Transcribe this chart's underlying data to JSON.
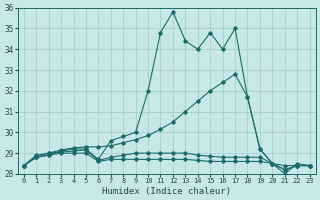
{
  "xlabel": "Humidex (Indice chaleur)",
  "bg_color": "#c8e8e8",
  "grid_color": "#a8cece",
  "line_color": "#1a6b6b",
  "xlim": [
    -0.5,
    23.5
  ],
  "ylim": [
    28,
    36
  ],
  "yticks": [
    28,
    29,
    30,
    31,
    32,
    33,
    34,
    35,
    36
  ],
  "xticks": [
    0,
    1,
    2,
    3,
    4,
    5,
    6,
    7,
    8,
    9,
    10,
    11,
    12,
    13,
    14,
    15,
    16,
    17,
    18,
    19,
    20,
    21,
    22,
    23
  ],
  "series": [
    [
      28.4,
      28.8,
      28.9,
      29.1,
      29.2,
      29.2,
      28.7,
      29.6,
      29.8,
      30.0,
      32.0,
      34.8,
      35.8,
      34.4,
      34.0,
      34.8,
      34.0,
      35.0,
      31.7,
      29.2,
      28.5,
      28.0,
      28.5,
      28.4
    ],
    [
      28.4,
      28.8,
      29.0,
      29.15,
      29.25,
      29.3,
      29.3,
      29.35,
      29.5,
      29.65,
      29.85,
      30.15,
      30.5,
      31.0,
      31.5,
      32.0,
      32.4,
      32.8,
      31.7,
      29.2,
      28.5,
      28.4,
      28.4,
      28.4
    ],
    [
      28.4,
      28.9,
      29.0,
      29.05,
      29.1,
      29.15,
      28.65,
      28.8,
      28.9,
      29.0,
      29.0,
      29.0,
      29.0,
      29.0,
      28.9,
      28.85,
      28.8,
      28.8,
      28.8,
      28.8,
      28.5,
      28.2,
      28.4,
      28.4
    ],
    [
      28.4,
      28.8,
      28.9,
      29.0,
      29.0,
      29.0,
      28.6,
      28.7,
      28.7,
      28.7,
      28.7,
      28.7,
      28.7,
      28.7,
      28.65,
      28.6,
      28.6,
      28.6,
      28.6,
      28.6,
      28.5,
      28.2,
      28.4,
      28.4
    ]
  ]
}
